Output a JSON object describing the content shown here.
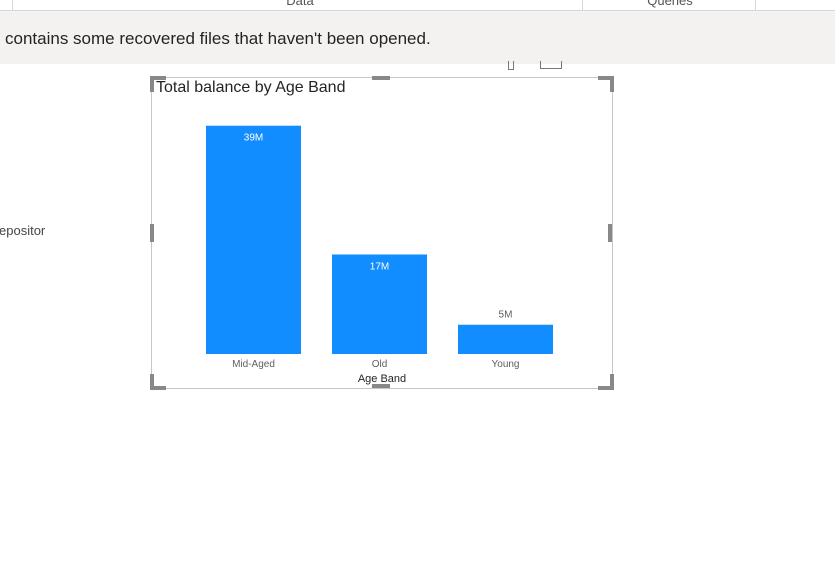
{
  "ribbon": {
    "groups": [
      "Data",
      "Queries"
    ]
  },
  "notice": {
    "text": "contains some recovered files that haven't been opened."
  },
  "canvas": {
    "side_label": "epositor"
  },
  "visual": {
    "title": "Total balance by Age Band"
  },
  "chart_data": {
    "type": "bar",
    "title": "Total balance by Age Band",
    "xlabel": "Age Band",
    "ylabel": "",
    "categories": [
      "Mid-Aged",
      "Old",
      "Young"
    ],
    "values": [
      39,
      17,
      5
    ],
    "value_unit": "M",
    "data_labels": [
      "39M",
      "17M",
      "5M"
    ],
    "ylim": [
      0,
      41
    ],
    "grid": false,
    "legend": "none",
    "colors": {
      "bar": "#118dff",
      "label_inside": "#ffffff",
      "label_outside": "#605e5c"
    }
  }
}
